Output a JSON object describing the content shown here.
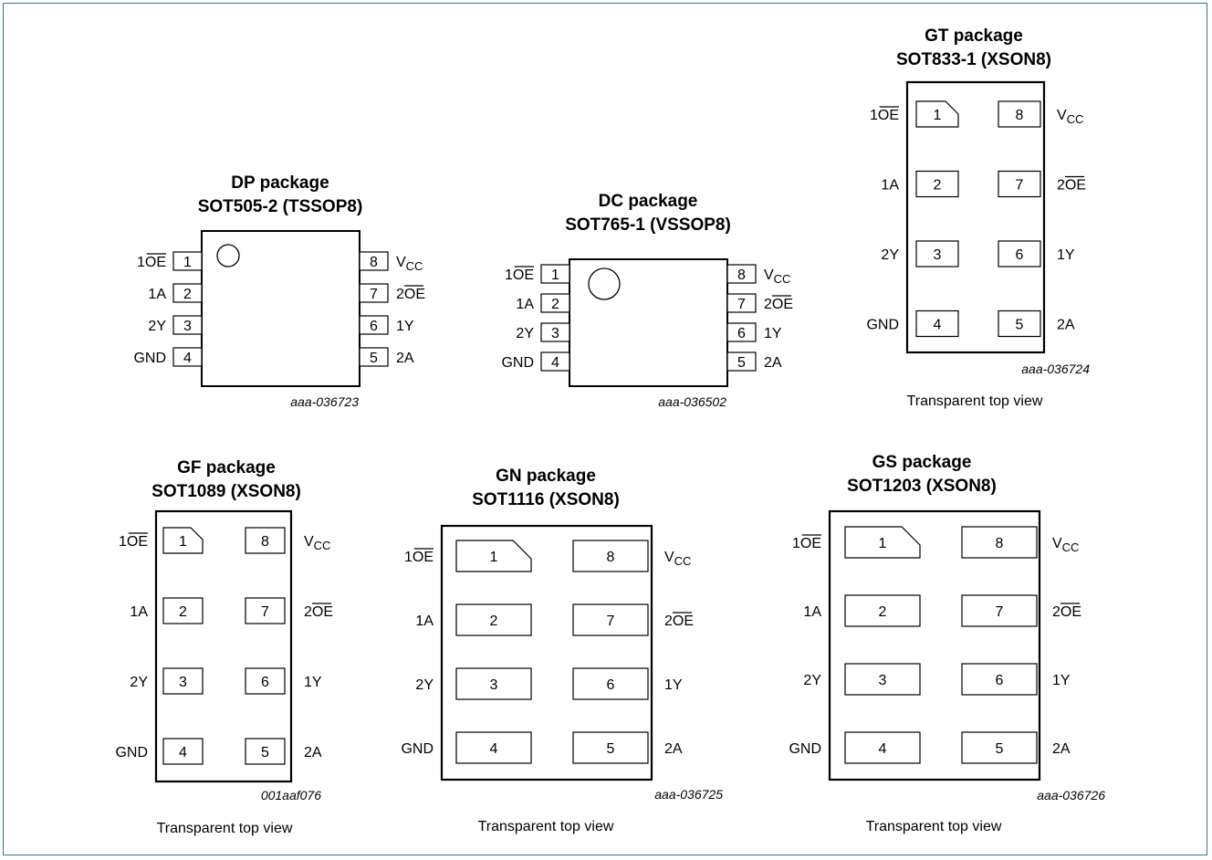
{
  "colors": {
    "border": "#2a7d8c",
    "ink": "#000000"
  },
  "packages": [
    {
      "id": "dp",
      "title": "DP package",
      "subtitle": "SOT505-2 (TSSOP8)",
      "code": "aaa-036723",
      "view": "",
      "pins": [
        {
          "num": "1",
          "label": "1OE",
          "overline": true,
          "prefix": "1",
          "bar": "OE"
        },
        {
          "num": "2",
          "label": "1A"
        },
        {
          "num": "3",
          "label": "2Y"
        },
        {
          "num": "4",
          "label": "GND"
        },
        {
          "num": "8",
          "label": "VCC",
          "vcc": true
        },
        {
          "num": "7",
          "label": "2OE",
          "overline": true,
          "prefix": "2",
          "bar": "OE"
        },
        {
          "num": "6",
          "label": "1Y"
        },
        {
          "num": "5",
          "label": "2A"
        }
      ]
    },
    {
      "id": "dc",
      "title": "DC package",
      "subtitle": "SOT765-1 (VSSOP8)",
      "code": "aaa-036502",
      "view": "",
      "pins": [
        {
          "num": "1",
          "label": "1OE",
          "overline": true,
          "prefix": "1",
          "bar": "OE"
        },
        {
          "num": "2",
          "label": "1A"
        },
        {
          "num": "3",
          "label": "2Y"
        },
        {
          "num": "4",
          "label": "GND"
        },
        {
          "num": "8",
          "label": "VCC",
          "vcc": true
        },
        {
          "num": "7",
          "label": "2OE",
          "overline": true,
          "prefix": "2",
          "bar": "OE"
        },
        {
          "num": "6",
          "label": "1Y"
        },
        {
          "num": "5",
          "label": "2A"
        }
      ]
    },
    {
      "id": "gt",
      "title": "GT package",
      "subtitle": "SOT833-1 (XSON8)",
      "code": "aaa-036724",
      "view": "Transparent top view",
      "pins": [
        {
          "num": "1",
          "label": "1OE",
          "overline": true,
          "prefix": "1",
          "bar": "OE"
        },
        {
          "num": "2",
          "label": "1A"
        },
        {
          "num": "3",
          "label": "2Y"
        },
        {
          "num": "4",
          "label": "GND"
        },
        {
          "num": "8",
          "label": "VCC",
          "vcc": true
        },
        {
          "num": "7",
          "label": "2OE",
          "overline": true,
          "prefix": "2",
          "bar": "OE"
        },
        {
          "num": "6",
          "label": "1Y"
        },
        {
          "num": "5",
          "label": "2A"
        }
      ]
    },
    {
      "id": "gf",
      "title": "GF package",
      "subtitle": "SOT1089 (XSON8)",
      "code": "001aaf076",
      "view": "Transparent top view",
      "pins": [
        {
          "num": "1",
          "label": "1OE",
          "overline": true,
          "prefix": "1",
          "bar": "OE"
        },
        {
          "num": "2",
          "label": "1A"
        },
        {
          "num": "3",
          "label": "2Y"
        },
        {
          "num": "4",
          "label": "GND"
        },
        {
          "num": "8",
          "label": "VCC",
          "vcc": true
        },
        {
          "num": "7",
          "label": "2OE",
          "overline": true,
          "prefix": "2",
          "bar": "OE"
        },
        {
          "num": "6",
          "label": "1Y"
        },
        {
          "num": "5",
          "label": "2A"
        }
      ]
    },
    {
      "id": "gn",
      "title": "GN package",
      "subtitle": "SOT1116 (XSON8)",
      "code": "aaa-036725",
      "view": "Transparent top view",
      "pins": [
        {
          "num": "1",
          "label": "1OE",
          "overline": true,
          "prefix": "1",
          "bar": "OE"
        },
        {
          "num": "2",
          "label": "1A"
        },
        {
          "num": "3",
          "label": "2Y"
        },
        {
          "num": "4",
          "label": "GND"
        },
        {
          "num": "8",
          "label": "VCC",
          "vcc": true
        },
        {
          "num": "7",
          "label": "2OE",
          "overline": true,
          "prefix": "2",
          "bar": "OE"
        },
        {
          "num": "6",
          "label": "1Y"
        },
        {
          "num": "5",
          "label": "2A"
        }
      ]
    },
    {
      "id": "gs",
      "title": "GS package",
      "subtitle": "SOT1203 (XSON8)",
      "code": "aaa-036726",
      "view": "Transparent top view",
      "pins": [
        {
          "num": "1",
          "label": "1OE",
          "overline": true,
          "prefix": "1",
          "bar": "OE"
        },
        {
          "num": "2",
          "label": "1A"
        },
        {
          "num": "3",
          "label": "2Y"
        },
        {
          "num": "4",
          "label": "GND"
        },
        {
          "num": "8",
          "label": "VCC",
          "vcc": true
        },
        {
          "num": "7",
          "label": "2OE",
          "overline": true,
          "prefix": "2",
          "bar": "OE"
        },
        {
          "num": "6",
          "label": "1Y"
        },
        {
          "num": "5",
          "label": "2A"
        }
      ]
    }
  ]
}
